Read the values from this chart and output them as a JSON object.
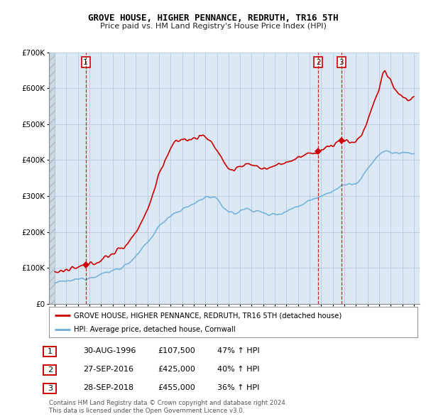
{
  "title": "GROVE HOUSE, HIGHER PENNANCE, REDRUTH, TR16 5TH",
  "subtitle": "Price paid vs. HM Land Registry's House Price Index (HPI)",
  "legend_line1": "GROVE HOUSE, HIGHER PENNANCE, REDRUTH, TR16 5TH (detached house)",
  "legend_line2": "HPI: Average price, detached house, Cornwall",
  "table": [
    {
      "num": "1",
      "date": "30-AUG-1996",
      "price": "£107,500",
      "change": "47% ↑ HPI"
    },
    {
      "num": "2",
      "date": "27-SEP-2016",
      "price": "£425,000",
      "change": "40% ↑ HPI"
    },
    {
      "num": "3",
      "date": "28-SEP-2018",
      "price": "£455,000",
      "change": "36% ↑ HPI"
    }
  ],
  "footnote1": "Contains HM Land Registry data © Crown copyright and database right 2024.",
  "footnote2": "This data is licensed under the Open Government Licence v3.0.",
  "sale_dates_decimal": [
    1996.664,
    2016.74,
    2018.745
  ],
  "sale_prices": [
    107500,
    425000,
    455000
  ],
  "sale_labels": [
    "1",
    "2",
    "3"
  ],
  "hpi_color": "#6baed6",
  "price_color": "#cc0000",
  "ylim": [
    0,
    700000
  ],
  "yticks": [
    0,
    100000,
    200000,
    300000,
    400000,
    500000,
    600000,
    700000
  ],
  "ytick_labels": [
    "£0",
    "£100K",
    "£200K",
    "£300K",
    "£400K",
    "£500K",
    "£600K",
    "£700K"
  ],
  "xlim_start": 1993.5,
  "xlim_end": 2025.5,
  "chart_bg": "#dce9f5",
  "background_color": "#ffffff",
  "grid_color": "#b8cfe0",
  "hatch_end": 1994.0,
  "label_box_color": "#cc0000"
}
